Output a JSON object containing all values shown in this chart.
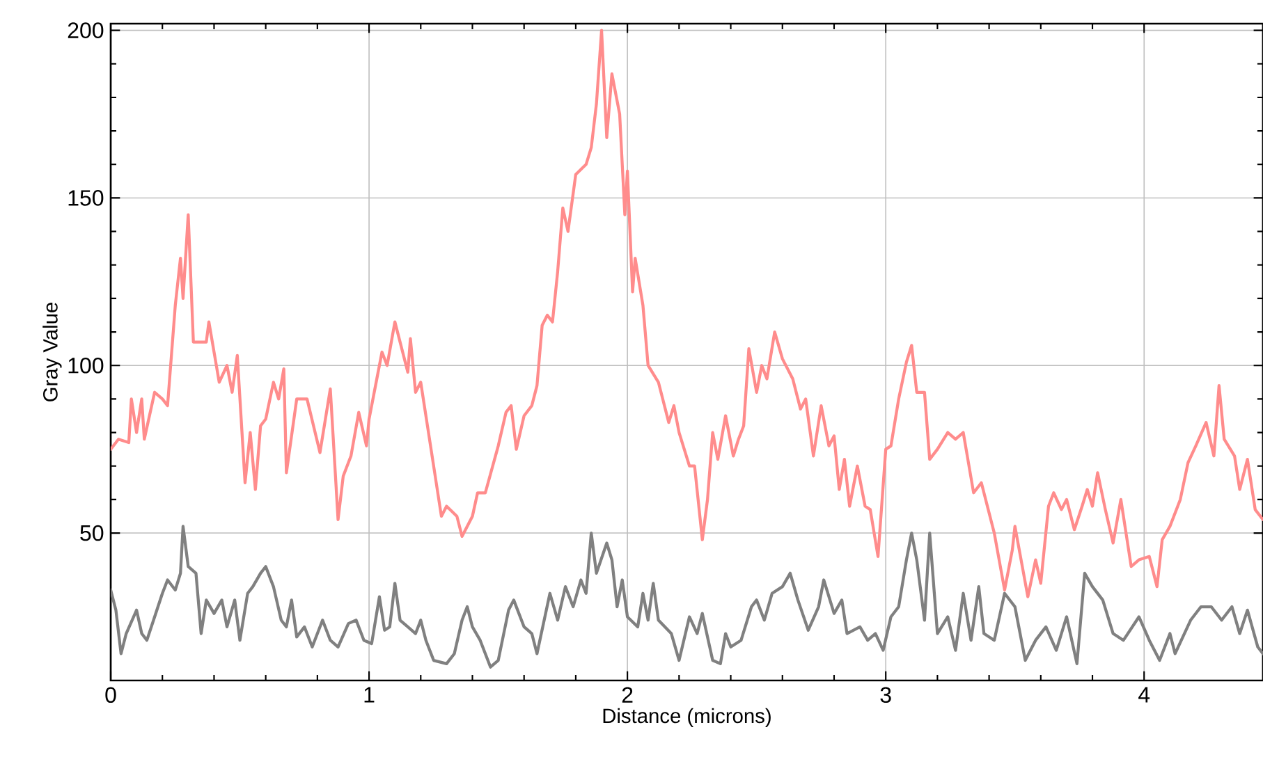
{
  "chart_data": {
    "type": "line",
    "xlabel": "Distance (microns)",
    "ylabel": "Gray Value",
    "xlim": [
      0,
      4.46
    ],
    "ylim": [
      6,
      202
    ],
    "xticks": [
      0,
      1,
      2,
      3,
      4
    ],
    "yticks": [
      50,
      100,
      150,
      200
    ],
    "grid": true,
    "marker": "none",
    "line_style": "solid",
    "series": [
      {
        "color": "#ff8c8c",
        "x": [
          0,
          0.03,
          0.07,
          0.08,
          0.1,
          0.12,
          0.13,
          0.17,
          0.2,
          0.22,
          0.25,
          0.27,
          0.28,
          0.3,
          0.32,
          0.37,
          0.38,
          0.42,
          0.45,
          0.47,
          0.49,
          0.52,
          0.54,
          0.56,
          0.58,
          0.6,
          0.63,
          0.65,
          0.67,
          0.68,
          0.72,
          0.76,
          0.81,
          0.85,
          0.88,
          0.9,
          0.93,
          0.96,
          0.99,
          1.0,
          1.03,
          1.05,
          1.07,
          1.1,
          1.15,
          1.16,
          1.18,
          1.2,
          1.25,
          1.28,
          1.3,
          1.34,
          1.36,
          1.4,
          1.42,
          1.45,
          1.5,
          1.53,
          1.55,
          1.57,
          1.6,
          1.63,
          1.65,
          1.67,
          1.69,
          1.71,
          1.73,
          1.75,
          1.77,
          1.8,
          1.84,
          1.86,
          1.88,
          1.9,
          1.92,
          1.94,
          1.97,
          1.99,
          2.0,
          2.02,
          2.03,
          2.06,
          2.08,
          2.12,
          2.16,
          2.18,
          2.2,
          2.24,
          2.26,
          2.29,
          2.31,
          2.33,
          2.35,
          2.38,
          2.41,
          2.43,
          2.45,
          2.47,
          2.5,
          2.52,
          2.54,
          2.57,
          2.6,
          2.64,
          2.67,
          2.69,
          2.72,
          2.75,
          2.78,
          2.8,
          2.82,
          2.84,
          2.86,
          2.89,
          2.92,
          2.94,
          2.97,
          3.0,
          3.02,
          3.05,
          3.08,
          3.1,
          3.12,
          3.15,
          3.17,
          3.2,
          3.24,
          3.27,
          3.3,
          3.34,
          3.37,
          3.42,
          3.46,
          3.49,
          3.5,
          3.55,
          3.58,
          3.6,
          3.63,
          3.65,
          3.68,
          3.7,
          3.73,
          3.76,
          3.78,
          3.8,
          3.82,
          3.85,
          3.88,
          3.91,
          3.95,
          3.98,
          4.02,
          4.05,
          4.07,
          4.1,
          4.14,
          4.17,
          4.2,
          4.24,
          4.27,
          4.29,
          4.31,
          4.35,
          4.37,
          4.4,
          4.43,
          4.46
        ],
        "values": [
          75,
          78,
          77,
          90,
          80,
          90,
          78,
          92,
          90,
          88,
          118,
          132,
          120,
          145,
          107,
          107,
          113,
          95,
          100,
          92,
          103,
          65,
          80,
          63,
          82,
          84,
          95,
          90,
          99,
          68,
          90,
          90,
          74,
          93,
          54,
          67,
          73,
          86,
          76,
          84,
          96,
          104,
          100,
          113,
          98,
          108,
          92,
          95,
          70,
          55,
          58,
          55,
          49,
          55,
          62,
          62,
          76,
          86,
          88,
          75,
          85,
          88,
          94,
          112,
          115,
          113,
          128,
          147,
          140,
          157,
          160,
          165,
          178,
          200,
          168,
          187,
          175,
          145,
          158,
          122,
          132,
          118,
          100,
          95,
          83,
          88,
          80,
          70,
          70,
          48,
          60,
          80,
          72,
          85,
          73,
          78,
          82,
          105,
          92,
          100,
          96,
          110,
          102,
          96,
          87,
          90,
          73,
          88,
          76,
          79,
          63,
          72,
          58,
          70,
          58,
          57,
          43,
          75,
          76,
          90,
          101,
          106,
          92,
          92,
          72,
          75,
          80,
          78,
          80,
          62,
          65,
          50,
          33,
          45,
          52,
          31,
          42,
          35,
          58,
          62,
          57,
          60,
          51,
          58,
          63,
          58,
          68,
          57,
          47,
          60,
          40,
          42,
          43,
          34,
          48,
          52,
          60,
          71,
          76,
          83,
          73,
          94,
          78,
          73,
          63,
          72,
          57,
          54
        ]
      },
      {
        "color": "#808080",
        "x": [
          0,
          0.02,
          0.04,
          0.06,
          0.1,
          0.12,
          0.14,
          0.17,
          0.2,
          0.22,
          0.25,
          0.27,
          0.28,
          0.3,
          0.33,
          0.35,
          0.37,
          0.4,
          0.43,
          0.45,
          0.48,
          0.5,
          0.53,
          0.55,
          0.58,
          0.6,
          0.63,
          0.66,
          0.68,
          0.7,
          0.72,
          0.75,
          0.78,
          0.82,
          0.85,
          0.88,
          0.92,
          0.95,
          0.98,
          1.01,
          1.04,
          1.06,
          1.08,
          1.1,
          1.12,
          1.15,
          1.18,
          1.2,
          1.22,
          1.25,
          1.3,
          1.33,
          1.36,
          1.38,
          1.4,
          1.43,
          1.47,
          1.5,
          1.54,
          1.56,
          1.6,
          1.63,
          1.65,
          1.7,
          1.73,
          1.76,
          1.79,
          1.82,
          1.84,
          1.86,
          1.88,
          1.92,
          1.94,
          1.96,
          1.98,
          2.0,
          2.04,
          2.06,
          2.08,
          2.1,
          2.12,
          2.17,
          2.2,
          2.24,
          2.27,
          2.29,
          2.33,
          2.36,
          2.38,
          2.4,
          2.44,
          2.48,
          2.5,
          2.53,
          2.56,
          2.6,
          2.63,
          2.66,
          2.7,
          2.74,
          2.76,
          2.8,
          2.83,
          2.85,
          2.9,
          2.93,
          2.96,
          2.99,
          3.02,
          3.05,
          3.08,
          3.1,
          3.12,
          3.15,
          3.17,
          3.2,
          3.24,
          3.27,
          3.3,
          3.33,
          3.36,
          3.38,
          3.42,
          3.46,
          3.5,
          3.54,
          3.58,
          3.62,
          3.66,
          3.7,
          3.74,
          3.77,
          3.8,
          3.84,
          3.88,
          3.92,
          3.98,
          4.02,
          4.06,
          4.1,
          4.12,
          4.18,
          4.22,
          4.26,
          4.3,
          4.34,
          4.37,
          4.4,
          4.44,
          4.46
        ],
        "values": [
          33,
          27,
          14,
          20,
          27,
          20,
          18,
          25,
          32,
          36,
          33,
          38,
          52,
          40,
          38,
          20,
          30,
          26,
          30,
          22,
          30,
          18,
          32,
          34,
          38,
          40,
          34,
          24,
          22,
          30,
          19,
          22,
          16,
          24,
          18,
          16,
          23,
          24,
          18,
          17,
          31,
          21,
          22,
          35,
          24,
          22,
          20,
          24,
          18,
          12,
          11,
          14,
          24,
          28,
          22,
          18,
          10,
          12,
          27,
          30,
          22,
          20,
          14,
          32,
          24,
          34,
          28,
          36,
          32,
          50,
          38,
          47,
          42,
          28,
          36,
          25,
          22,
          32,
          24,
          35,
          24,
          20,
          12,
          25,
          20,
          26,
          12,
          11,
          20,
          16,
          18,
          28,
          30,
          24,
          32,
          34,
          38,
          30,
          21,
          28,
          36,
          26,
          30,
          20,
          22,
          18,
          20,
          15,
          25,
          28,
          42,
          50,
          42,
          24,
          50,
          20,
          25,
          15,
          32,
          18,
          34,
          20,
          18,
          32,
          28,
          12,
          18,
          22,
          15,
          25,
          11,
          38,
          34,
          30,
          20,
          18,
          25,
          18,
          12,
          20,
          14,
          24,
          28,
          28,
          24,
          28,
          20,
          27,
          16,
          14
        ]
      }
    ]
  }
}
